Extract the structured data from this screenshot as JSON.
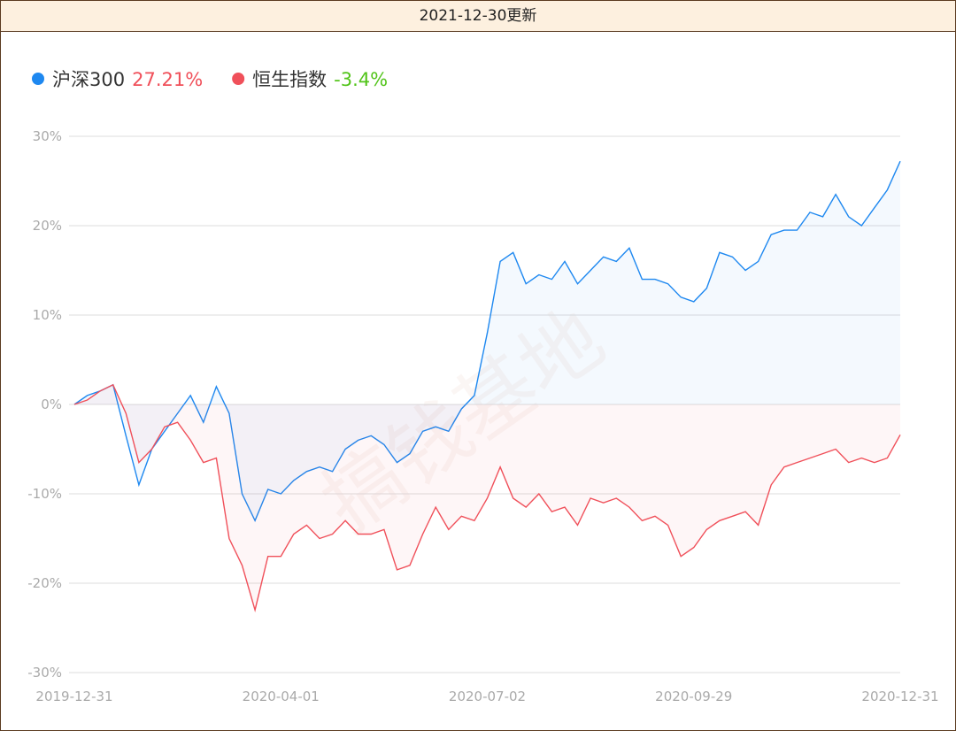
{
  "header": {
    "title": "2021-12-30更新"
  },
  "chart_data": {
    "type": "line",
    "watermark": "搞钱基地",
    "categories": [
      "2019-12-31",
      null,
      null,
      null,
      null,
      null,
      null,
      null,
      null,
      null,
      null,
      null,
      null,
      null,
      null,
      null,
      "2020-04-01",
      null,
      null,
      null,
      null,
      null,
      null,
      null,
      null,
      null,
      null,
      null,
      null,
      null,
      null,
      null,
      "2020-07-02",
      null,
      null,
      null,
      null,
      null,
      null,
      null,
      null,
      null,
      null,
      null,
      null,
      null,
      null,
      null,
      "2020-09-29",
      null,
      null,
      null,
      null,
      null,
      null,
      null,
      null,
      null,
      null,
      null,
      null,
      null,
      null,
      null,
      "2020-12-31"
    ],
    "series": [
      {
        "name": "沪深300",
        "summary": "27.21%",
        "summary_color": "#f0505a",
        "color": "#1e88f0",
        "area_color": "rgba(30,136,240,0.05)",
        "values": [
          0,
          1,
          1.5,
          2.2,
          -3.5,
          -9,
          -5,
          -3,
          -1,
          1,
          -2,
          2,
          -1,
          -10,
          -13,
          -9.5,
          -10,
          -8.5,
          -7.5,
          -7,
          -7.5,
          -5,
          -4,
          -3.5,
          -4.5,
          -6.5,
          -5.5,
          -3,
          -2.5,
          -3,
          -0.5,
          1,
          8,
          16,
          17,
          13.5,
          14.5,
          14,
          16,
          13.5,
          15,
          16.5,
          16,
          17.5,
          14,
          14,
          13.5,
          12,
          11.5,
          13,
          17,
          16.5,
          15,
          16,
          19,
          19.5,
          19.5,
          21.5,
          21,
          23.5,
          21,
          20,
          22,
          24,
          27.21
        ]
      },
      {
        "name": "恒生指数",
        "summary": "-3.4%",
        "summary_color": "#52c41a",
        "color": "#f0505a",
        "area_color": "rgba(240,80,90,0.05)",
        "values": [
          0,
          0.5,
          1.5,
          2.2,
          -1,
          -6.5,
          -5,
          -2.5,
          -2,
          -4,
          -6.5,
          -6,
          -15,
          -18,
          -23,
          -17,
          -17,
          -14.5,
          -13.5,
          -15,
          -14.5,
          -13,
          -14.5,
          -14.5,
          -14,
          -18.5,
          -18,
          -14.5,
          -11.5,
          -14,
          -12.5,
          -13,
          -10.5,
          -7,
          -10.5,
          -11.5,
          -10,
          -12,
          -11.5,
          -13.5,
          -10.5,
          -11,
          -10.5,
          -11.5,
          -13,
          -12.5,
          -13.5,
          -17,
          -16,
          -14,
          -13,
          -12.5,
          -12,
          -13.5,
          -9,
          -7,
          -6.5,
          -6,
          -5.5,
          -5,
          -6.5,
          -6,
          -6.5,
          -6,
          -3.4
        ]
      }
    ],
    "ylim": [
      -30,
      30
    ],
    "yticks": [
      {
        "value": -30,
        "label": "-30%"
      },
      {
        "value": -20,
        "label": "-20%"
      },
      {
        "value": -10,
        "label": "-10%"
      },
      {
        "value": 0,
        "label": "0%"
      },
      {
        "value": 10,
        "label": "10%"
      },
      {
        "value": 20,
        "label": "20%"
      },
      {
        "value": 30,
        "label": "30%"
      }
    ],
    "grid": true,
    "legend": "top-left"
  }
}
